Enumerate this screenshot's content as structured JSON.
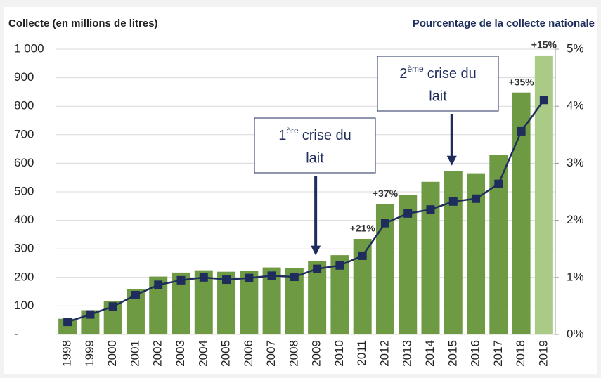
{
  "chart_data": {
    "type": "bar_line",
    "y_label": "Collecte (en millions de litres)",
    "y2_label": "Pourcentage de la collecte nationale",
    "categories": [
      "1998",
      "1999",
      "2000",
      "2001",
      "2002",
      "2003",
      "2004",
      "2005",
      "2006",
      "2007",
      "2008",
      "2009",
      "2010",
      "2011",
      "2012",
      "2013",
      "2014",
      "2015",
      "2016",
      "2017",
      "2018",
      "2019"
    ],
    "series": [
      {
        "type": "bar",
        "colors": [
          "#6f9a44",
          "#6f9a44",
          "#6f9a44",
          "#6f9a44",
          "#6f9a44",
          "#6f9a44",
          "#6f9a44",
          "#6f9a44",
          "#6f9a44",
          "#6f9a44",
          "#6f9a44",
          "#6f9a44",
          "#6f9a44",
          "#6f9a44",
          "#6f9a44",
          "#6f9a44",
          "#6f9a44",
          "#6f9a44",
          "#6f9a44",
          "#6f9a44",
          "#6f9a44",
          "#a9cb85"
        ],
        "values": [
          55,
          85,
          118,
          158,
          203,
          217,
          225,
          220,
          222,
          235,
          232,
          257,
          278,
          335,
          458,
          490,
          535,
          572,
          565,
          630,
          848,
          978
        ]
      },
      {
        "type": "line",
        "axis": "y2",
        "color": "#1f2d5c",
        "values": [
          0.22,
          0.35,
          0.49,
          0.69,
          0.87,
          0.95,
          1.0,
          0.96,
          0.99,
          1.03,
          1.01,
          1.15,
          1.21,
          1.38,
          1.95,
          2.12,
          2.19,
          2.33,
          2.38,
          2.64,
          3.56,
          4.11
        ]
      }
    ],
    "ylim": [
      0,
      1000
    ],
    "yticks": [
      {
        "value": 0,
        "label": "-"
      },
      100,
      200,
      300,
      400,
      500,
      600,
      700,
      800,
      900,
      {
        "value": 1000,
        "label": "1 000"
      }
    ],
    "y2lim": [
      0,
      5
    ],
    "y2ticks": [
      {
        "value": 0,
        "label": "0%"
      },
      {
        "value": 1,
        "label": "1%"
      },
      {
        "value": 2,
        "label": "2%"
      },
      {
        "value": 3,
        "label": "3%"
      },
      {
        "value": 4,
        "label": "4%"
      },
      {
        "value": 5,
        "label": "5%"
      }
    ],
    "grid": true,
    "annotations": [
      {
        "text": "+21%",
        "category": "2011"
      },
      {
        "text": "+37%",
        "category": "2012"
      },
      {
        "text": "+35%",
        "category": "2018"
      },
      {
        "text": "+15%",
        "category": "2019"
      }
    ],
    "callouts": [
      {
        "ordinal": "1",
        "suffix": "ère",
        "lines": [
          "crise du",
          "lait"
        ],
        "category": "2009"
      },
      {
        "ordinal": "2",
        "suffix": "ème",
        "lines": [
          "crise du",
          "lait"
        ],
        "category": "2015"
      }
    ]
  }
}
